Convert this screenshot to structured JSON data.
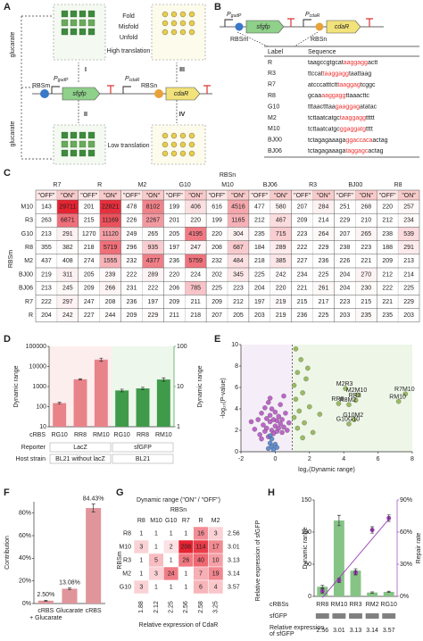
{
  "panel_labels": [
    "A",
    "B",
    "C",
    "D",
    "E",
    "F",
    "G",
    "H"
  ],
  "diagram_a": {
    "glucarate_top": "glucarate",
    "glucarate_bottom": "glucarate",
    "fold": "Fold",
    "misfold": "Misfold",
    "unfold": "Unfold",
    "high": "High translation",
    "low": "Low translation",
    "numerals": [
      "I",
      "II",
      "III",
      "IV"
    ],
    "rbsm": "RBSm",
    "rbsn": "RBSn",
    "gene1": "sfgfp",
    "gene2": "cdaR",
    "promoter1": {
      "main": "P",
      "sub": "gudP"
    },
    "promoter2": {
      "main": "P",
      "sub": "cdaR"
    }
  },
  "sequences_b": {
    "rbsm": "RBSm",
    "rbsn": "RBSn",
    "gene1": "sfgfp",
    "gene2": "cdaR",
    "promoter1": {
      "main": "P",
      "sub": "gudP"
    },
    "promoter2": {
      "main": "P",
      "sub": "cdaR"
    },
    "header": [
      "Label",
      "Sequence"
    ],
    "rows": [
      {
        "label": "R",
        "parts": [
          "taagccgtgcat",
          "aaggagg",
          "actt"
        ]
      },
      {
        "label": "R3",
        "parts": [
          "ttccat",
          "taaggagg",
          "taattaag"
        ]
      },
      {
        "label": "R7",
        "parts": [
          "atcccatttctt",
          "taaggag",
          "tcggc"
        ]
      },
      {
        "label": "R8",
        "parts": [
          "gcaa",
          "aaggagg",
          "ttaaacttc"
        ]
      },
      {
        "label": "G10",
        "parts": [
          "tttaactttaa",
          "gaaggag",
          "atatac"
        ]
      },
      {
        "label": "M2",
        "parts": [
          "tcttaatcatgc",
          "taaggagg",
          "ttttt"
        ]
      },
      {
        "label": "M10",
        "parts": [
          "tcttaatcatgc",
          "ggaggatg",
          "tttt"
        ]
      },
      {
        "label": "BJ00",
        "parts": [
          "tctagagaaaga",
          "ggaccaca",
          "actag"
        ]
      },
      {
        "label": "BJ06",
        "parts": [
          "tctagagaaaga",
          "taggagc",
          "actag"
        ]
      }
    ]
  },
  "table_c": {
    "column_title": "RBSn",
    "row_title": "RBSm",
    "off": "\"OFF\"",
    "on": "\"ON\"",
    "columns": [
      "R7",
      "R",
      "M2",
      "G10",
      "M10",
      "BJ06",
      "R3",
      "BJ00",
      "R8"
    ],
    "rows": [
      {
        "label": "M10",
        "cells": [
          [
            143,
            29711
          ],
          [
            201,
            22821
          ],
          [
            478,
            8102
          ],
          [
            199,
            406
          ],
          [
            616,
            4516
          ],
          [
            477,
            580
          ],
          [
            207,
            284
          ],
          [
            251,
            268
          ],
          [
            220,
            257
          ]
        ]
      },
      {
        "label": "R3",
        "cells": [
          [
            263,
            6871
          ],
          [
            215,
            11169
          ],
          [
            226,
            2267
          ],
          [
            201,
            220
          ],
          [
            199,
            1165
          ],
          [
            212,
            467
          ],
          [
            209,
            214
          ],
          [
            229,
            210
          ],
          [
            212,
            234
          ]
        ]
      },
      {
        "label": "G10",
        "cells": [
          [
            213,
            291
          ],
          [
            1270,
            11120
          ],
          [
            249,
            265
          ],
          [
            205,
            4195
          ],
          [
            220,
            304
          ],
          [
            235,
            715
          ],
          [
            223,
            264
          ],
          [
            207,
            265
          ],
          [
            238,
            539
          ]
        ]
      },
      {
        "label": "R8",
        "cells": [
          [
            355,
            382
          ],
          [
            218,
            5719
          ],
          [
            296,
            935
          ],
          [
            197,
            247
          ],
          [
            208,
            687
          ],
          [
            184,
            289
          ],
          [
            222,
            229
          ],
          [
            238,
            223
          ],
          [
            188,
            291
          ]
        ]
      },
      {
        "label": "M2",
        "cells": [
          [
            437,
            408
          ],
          [
            274,
            1555
          ],
          [
            232,
            4377
          ],
          [
            236,
            5759
          ],
          [
            232,
            484
          ],
          [
            218,
            385
          ],
          [
            227,
            236
          ],
          [
            226,
            221
          ],
          [
            209,
            213
          ]
        ]
      },
      {
        "label": "BJ00",
        "cells": [
          [
            219,
            311
          ],
          [
            205,
            239
          ],
          [
            222,
            289
          ],
          [
            220,
            224
          ],
          [
            202,
            345
          ],
          [
            225,
            242
          ],
          [
            234,
            225
          ],
          [
            204,
            270
          ],
          [
            212,
            214
          ]
        ]
      },
      {
        "label": "BJ06",
        "cells": [
          [
            213,
            245
          ],
          [
            209,
            266
          ],
          [
            231,
            222
          ],
          [
            206,
            785
          ],
          [
            225,
            223
          ],
          [
            204,
            220
          ],
          [
            221,
            261
          ],
          [
            204,
            230
          ],
          [
            222,
            225
          ]
        ]
      },
      {
        "label": "R7",
        "cells": [
          [
            222,
            297
          ],
          [
            247,
            208
          ],
          [
            236,
            197
          ],
          [
            209,
            211
          ],
          [
            209,
            212
          ],
          [
            197,
            219
          ],
          [
            215,
            217
          ],
          [
            223,
            215
          ],
          [
            221,
            229
          ]
        ]
      },
      {
        "label": "R",
        "cells": [
          [
            204,
            242
          ],
          [
            227,
            244
          ],
          [
            209,
            229
          ],
          [
            211,
            218
          ],
          [
            207,
            205
          ],
          [
            203,
            219
          ],
          [
            236,
            225
          ],
          [
            203,
            235
          ],
          [
            235,
            203
          ]
        ]
      }
    ]
  },
  "chart_data": [
    {
      "type": "bar",
      "ylog": true,
      "y2log": true,
      "ylabel": "Dynamic range",
      "y2label": "Dynamic range",
      "categories": [
        "RG10",
        "RR8",
        "RM10",
        "RG10",
        "RR8",
        "RM10"
      ],
      "series": [
        {
          "color": "#e8838a",
          "values": [
            150,
            2300,
            22000,
            null,
            null,
            null
          ],
          "errors": [
            15,
            150,
            4000,
            null,
            null,
            null
          ]
        },
        {
          "color": "#3f9b4a",
          "axis": "y2",
          "values": [
            null,
            null,
            null,
            8,
            9,
            15
          ],
          "errors": [
            null,
            null,
            null,
            0.6,
            0.6,
            1.5
          ]
        }
      ],
      "ylim": [
        10,
        100000
      ],
      "yticks": [
        10,
        100,
        1000,
        10000,
        100000
      ],
      "y2lim": [
        1,
        100
      ],
      "y2ticks": [
        1,
        10,
        100
      ],
      "category_label": "cRBS",
      "rows": [
        {
          "label": "Reporter",
          "groups": [
            "LacZ",
            "sfGFP"
          ]
        },
        {
          "label": "Host strain",
          "groups": [
            "BL21 without lacZ",
            "BL21"
          ]
        }
      ]
    },
    {
      "type": "scatter",
      "xlabel": "log₂(Dynamic range)",
      "ylabel": "-log₁₀(P-value)",
      "xlim": [
        -2,
        8
      ],
      "xticks": [
        -2,
        0,
        2,
        4,
        6,
        8
      ],
      "ylim": [
        0,
        10
      ],
      "yticks": [
        0,
        2,
        4,
        6,
        8,
        10
      ],
      "vline": 1,
      "series": [
        {
          "color": "#b04fc0",
          "x": [
            -1.2,
            -1.0,
            -0.9,
            -0.8,
            -0.7,
            -0.6,
            -0.6,
            -0.5,
            -0.5,
            -0.4,
            -0.4,
            -0.3,
            -0.3,
            -0.2,
            -0.2,
            -0.1,
            -0.1,
            0.0,
            0.0,
            0.1,
            0.1,
            0.2,
            0.2,
            0.3,
            0.3,
            0.4,
            0.4,
            0.5,
            0.6,
            0.7,
            -0.8,
            0.5,
            -0.3,
            0.8,
            -1.4
          ],
          "values": [
            2.1,
            3.0,
            1.6,
            3.6,
            2.5,
            4.1,
            1.9,
            3.1,
            2.2,
            4.6,
            1.4,
            2.8,
            3.4,
            2.0,
            4.0,
            3.0,
            1.7,
            2.4,
            3.7,
            2.9,
            1.9,
            3.3,
            2.2,
            4.4,
            2.6,
            1.8,
            3.0,
            2.3,
            3.6,
            2.0,
            1.2,
            5.2,
            5.0,
            2.7,
            2.8
          ]
        },
        {
          "color": "#4a7fc8",
          "x": [
            -0.4,
            -0.3,
            -0.2,
            -0.2,
            -0.1,
            0.0,
            -0.3,
            0.1
          ],
          "values": [
            0.3,
            0.8,
            0.5,
            1.2,
            0.2,
            0.7,
            1.5,
            0.4
          ]
        },
        {
          "color": "#8cb04a",
          "x": [
            1.2,
            1.5,
            1.3,
            1.8,
            1.1,
            1.6,
            1.2,
            2.0,
            1.4,
            1.1,
            1.7,
            1.3,
            2.2,
            1.6,
            2.6,
            1.9,
            4.1,
            4.8,
            4.7,
            3.7,
            4.3,
            7.6,
            7.2,
            4.6,
            4.3
          ],
          "values": [
            9.6,
            8.6,
            7.4,
            6.8,
            6.2,
            5.5,
            4.9,
            4.2,
            3.8,
            3.2,
            2.7,
            2.2,
            1.8,
            1.3,
            3.5,
            7.8,
            5.9,
            5.3,
            4.8,
            4.5,
            4.4,
            5.4,
            4.7,
            3.0,
            2.6
          ],
          "point_labels": [
            null,
            null,
            null,
            null,
            null,
            null,
            null,
            null,
            null,
            null,
            null,
            null,
            null,
            null,
            null,
            null,
            "M2R3",
            "M2M10",
            "RR3",
            "RR8",
            "R8M2",
            "R7M10",
            "RM10",
            "G10M2",
            "G10G10"
          ]
        }
      ]
    },
    {
      "type": "bar",
      "ylabel": "Contribution",
      "categories": [
        [
          "cRBS",
          "+ Glucarate"
        ],
        [
          "Glucarate"
        ],
        [
          "cRBS"
        ]
      ],
      "series": [
        {
          "color": "#e0959b",
          "values": [
            2.5,
            13.08,
            84.43
          ],
          "value_labels": [
            "2.50%",
            "13.08%",
            "84.43%"
          ],
          "errors": [
            0.4,
            0.8,
            3.5
          ]
        }
      ],
      "ylim": [
        0,
        90
      ],
      "yticks": [
        {
          "value": 0,
          "label": "0%"
        },
        {
          "value": 20,
          "label": "20%"
        },
        {
          "value": 40,
          "label": "40%"
        },
        {
          "value": 60,
          "label": "60%"
        },
        {
          "value": 80,
          "label": "80%"
        }
      ]
    },
    {
      "type": "heatmap",
      "title": "Dynamic range (\"ON\" / \"OFF\")",
      "column_title": "RBSn",
      "row_title": "RBSm",
      "columns": [
        "R8",
        "M10",
        "G10",
        "R7",
        "R",
        "M2"
      ],
      "rows": [
        "R8",
        "M10",
        "R3",
        "M2",
        "G10"
      ],
      "values": [
        [
          1,
          1,
          1,
          1,
          16,
          3
        ],
        [
          3,
          1,
          2,
          208,
          114,
          17
        ],
        [
          1,
          5,
          1,
          26,
          40,
          10
        ],
        [
          1,
          3,
          24,
          1,
          7,
          19
        ],
        [
          3,
          1,
          1,
          1,
          6,
          4
        ]
      ],
      "row_values": [
        2.56,
        3.01,
        3.13,
        3.14,
        3.57
      ],
      "row_values_label": "Relative expression of sfGFP",
      "column_values": [
        1.88,
        2.12,
        2.25,
        2.56,
        2.58,
        3.25
      ],
      "column_values_label": "Relative expression of CdaR"
    },
    {
      "type": "bar",
      "ylabel": "Dynamic range",
      "y2label": "Repair rate",
      "categories": [
        "RR8",
        "RM10",
        "RR3",
        "RM2",
        "RG10"
      ],
      "series": [
        {
          "color": "#86c486",
          "values": [
            15,
            118,
            40,
            6,
            7
          ],
          "errors": [
            2,
            8,
            3,
            1,
            1
          ]
        },
        {
          "type": "scatter",
          "trend": true,
          "color": "#9b3fb5",
          "axis": "y2",
          "values": [
            5,
            15,
            22,
            62,
            73
          ],
          "errors": [
            2,
            2,
            2,
            3,
            3
          ]
        }
      ],
      "ylim": [
        0,
        150
      ],
      "yticks": [
        0,
        50,
        100,
        150
      ],
      "y2lim": [
        0,
        90
      ],
      "y2ticks": [
        {
          "value": 0,
          "label": "0%"
        },
        {
          "value": 30,
          "label": "30%"
        },
        {
          "value": 60,
          "label": "60%"
        },
        {
          "value": 90,
          "label": "90%"
        }
      ],
      "category_label": "cRBSs",
      "rows": [
        {
          "label": "sfGFP"
        },
        {
          "label": [
            "Relative expression",
            "of sfGFP"
          ],
          "values": [
            2.56,
            3.01,
            3.13,
            3.14,
            3.57
          ]
        }
      ]
    }
  ]
}
